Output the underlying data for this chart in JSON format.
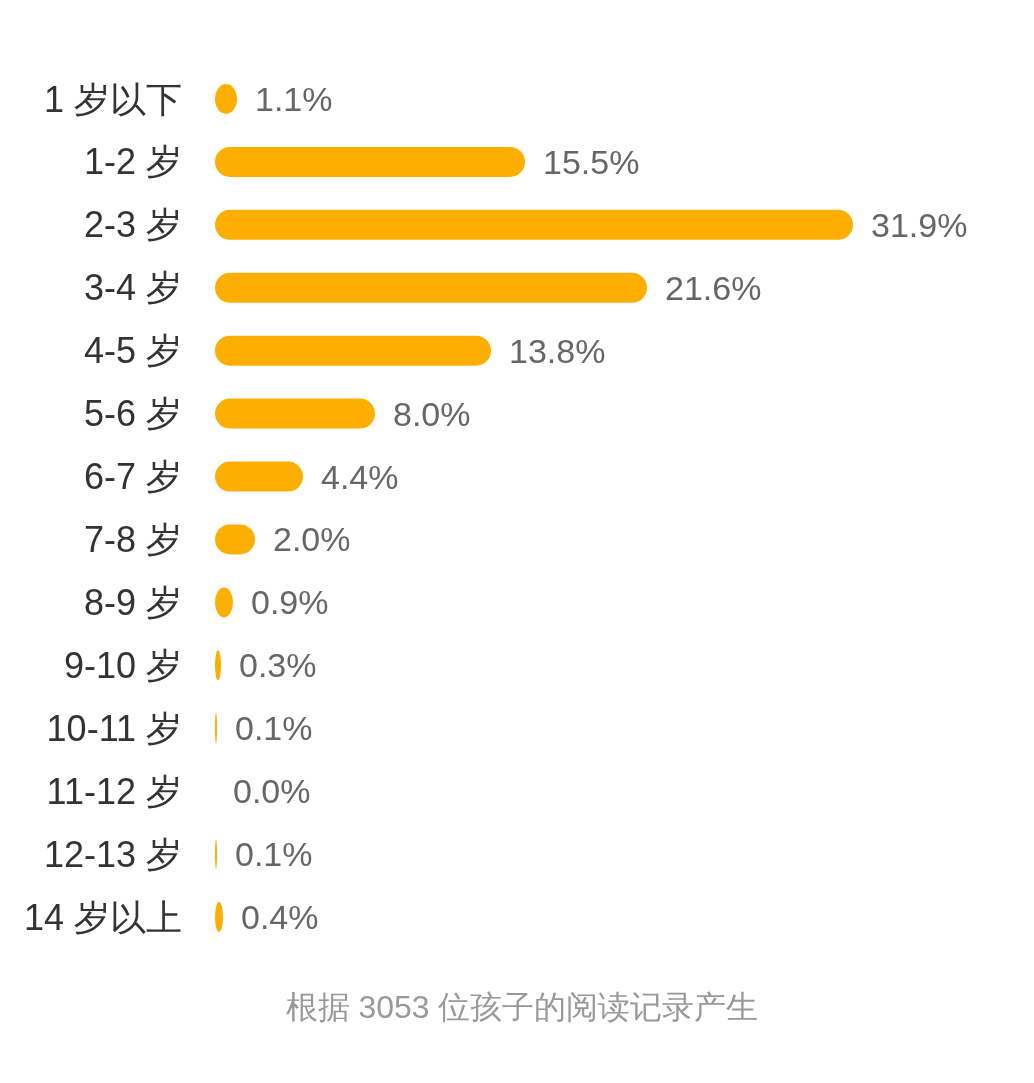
{
  "chart_data": {
    "type": "bar",
    "orientation": "horizontal",
    "categories": [
      "1 岁以下",
      "1-2 岁",
      "2-3 岁",
      "3-4 岁",
      "4-5 岁",
      "5-6 岁",
      "6-7 岁",
      "7-8 岁",
      "8-9 岁",
      "9-10 岁",
      "10-11 岁",
      "11-12 岁",
      "12-13 岁",
      "14 岁以上"
    ],
    "values": [
      1.1,
      15.5,
      31.9,
      21.6,
      13.8,
      8.0,
      4.4,
      2.0,
      0.9,
      0.3,
      0.1,
      0.0,
      0.1,
      0.4
    ],
    "value_labels": [
      "1.1%",
      "15.5%",
      "31.9%",
      "21.6%",
      "13.8%",
      "8.0%",
      "4.4%",
      "2.0%",
      "0.9%",
      "0.3%",
      "0.1%",
      "0.0%",
      "0.1%",
      "0.4%"
    ],
    "color": "#fcaf00",
    "annotations": [
      "根据 3053 位孩子的阅读记录产生"
    ]
  }
}
